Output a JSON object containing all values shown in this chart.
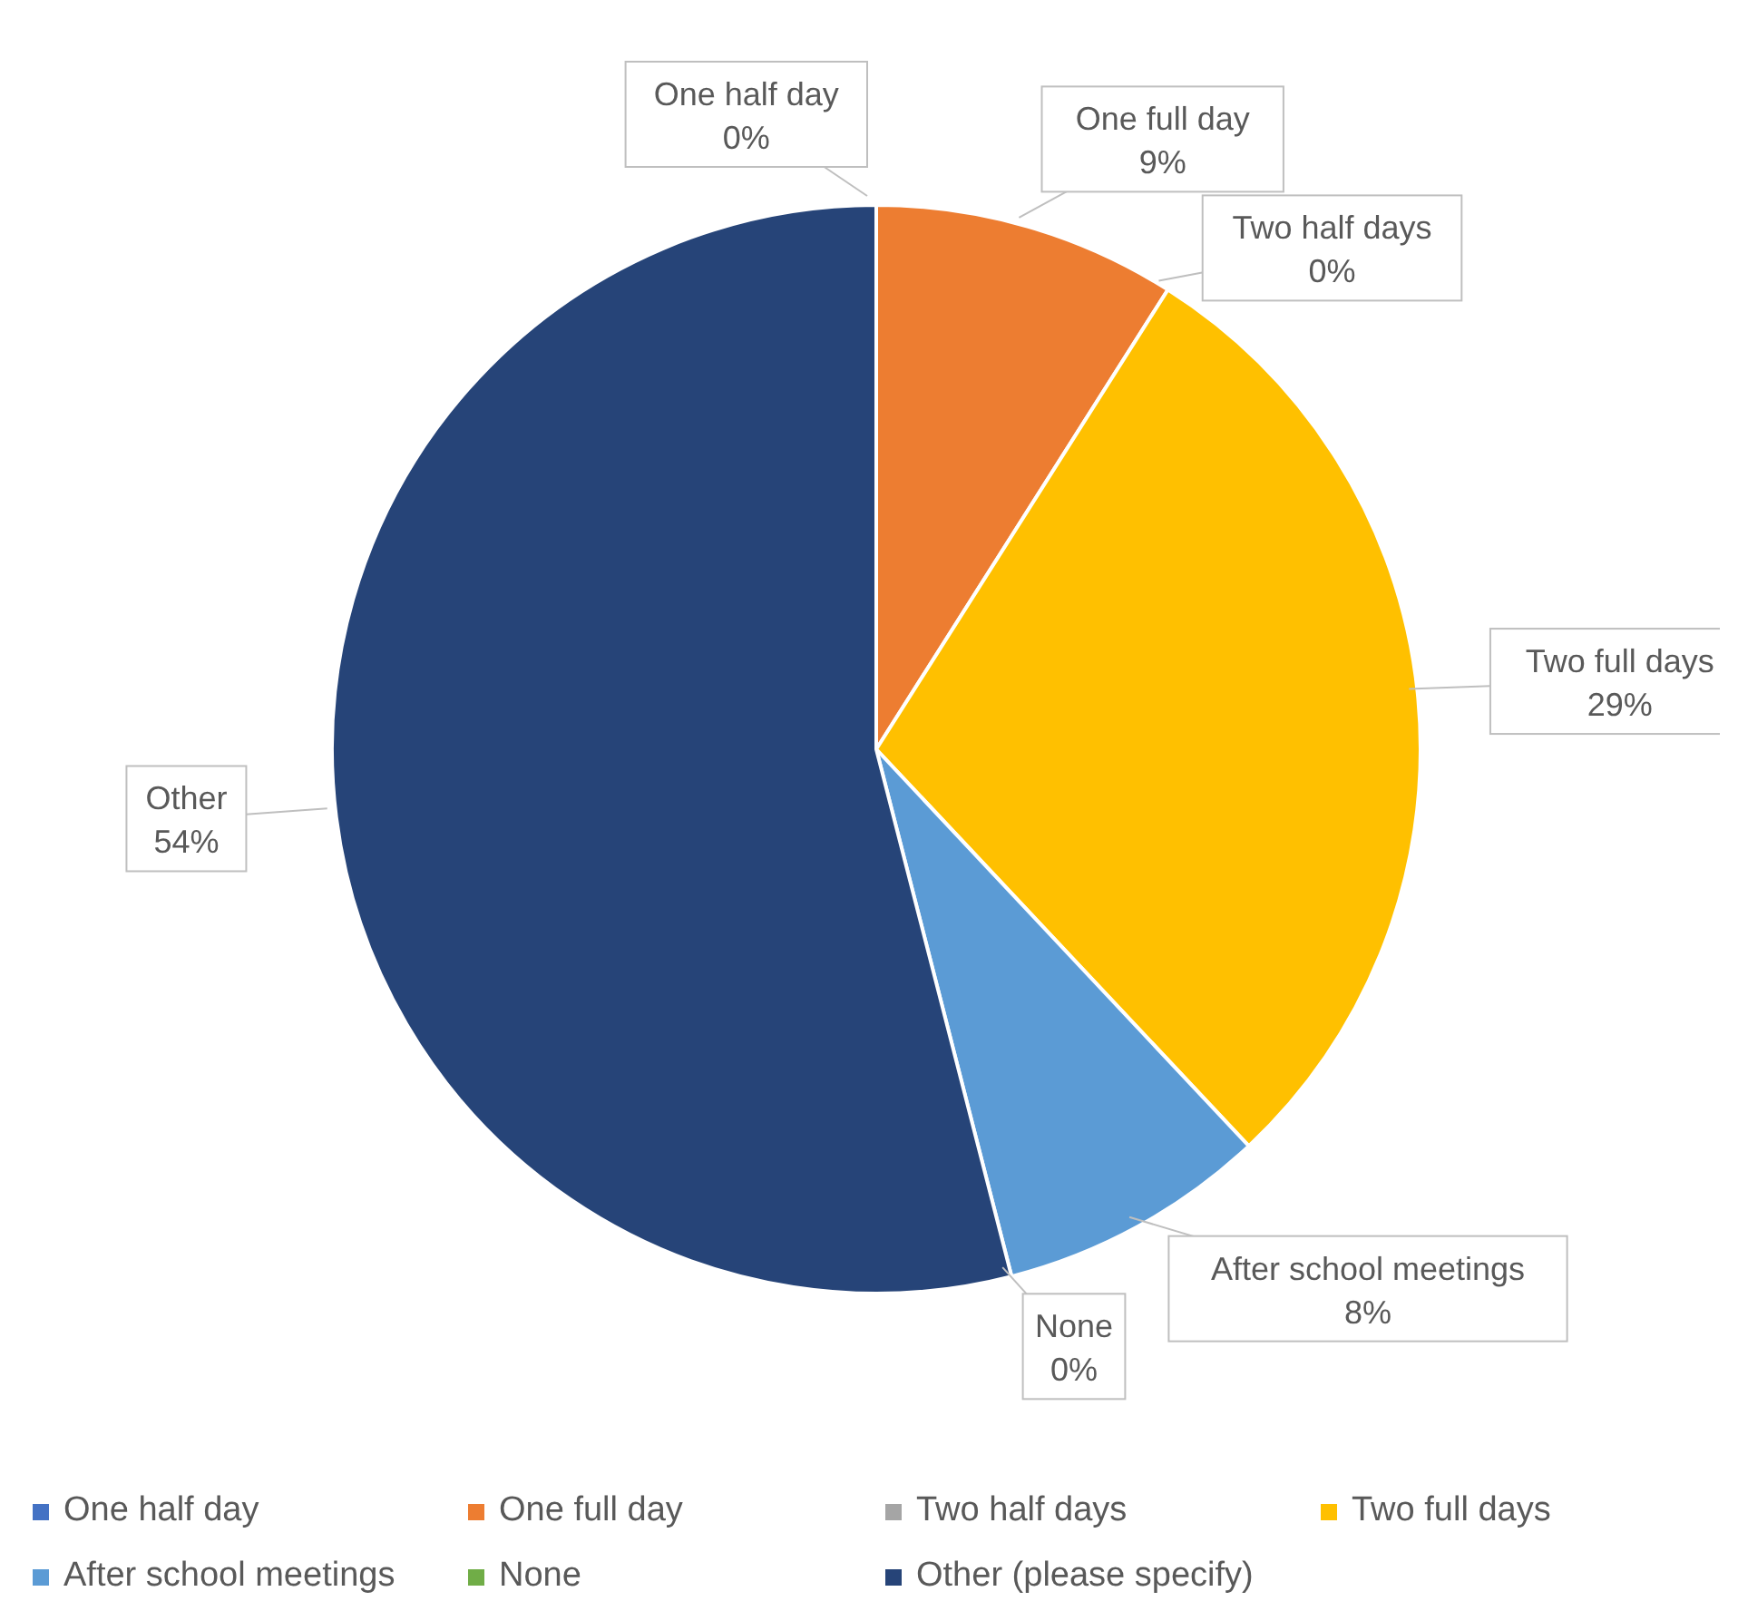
{
  "chart_data": {
    "type": "pie",
    "categories": [
      "One half day",
      "One full day",
      "Two half days",
      "Two full days",
      "After school meetings",
      "None",
      "Other (please specify)"
    ],
    "values": [
      0,
      9,
      0,
      29,
      8,
      0,
      54
    ],
    "colors": [
      "#4472c4",
      "#ed7d31",
      "#a5a5a5",
      "#ffc000",
      "#5b9bd5",
      "#70ad47",
      "#264478"
    ],
    "value_labels": [
      "One half day\n0%",
      "One full day\n9%",
      "Two half days\n0%",
      "Two full days\n29%",
      "After school meetings\n8%",
      "None\n0%",
      "Other\n54%"
    ],
    "legend": "bottom"
  }
}
